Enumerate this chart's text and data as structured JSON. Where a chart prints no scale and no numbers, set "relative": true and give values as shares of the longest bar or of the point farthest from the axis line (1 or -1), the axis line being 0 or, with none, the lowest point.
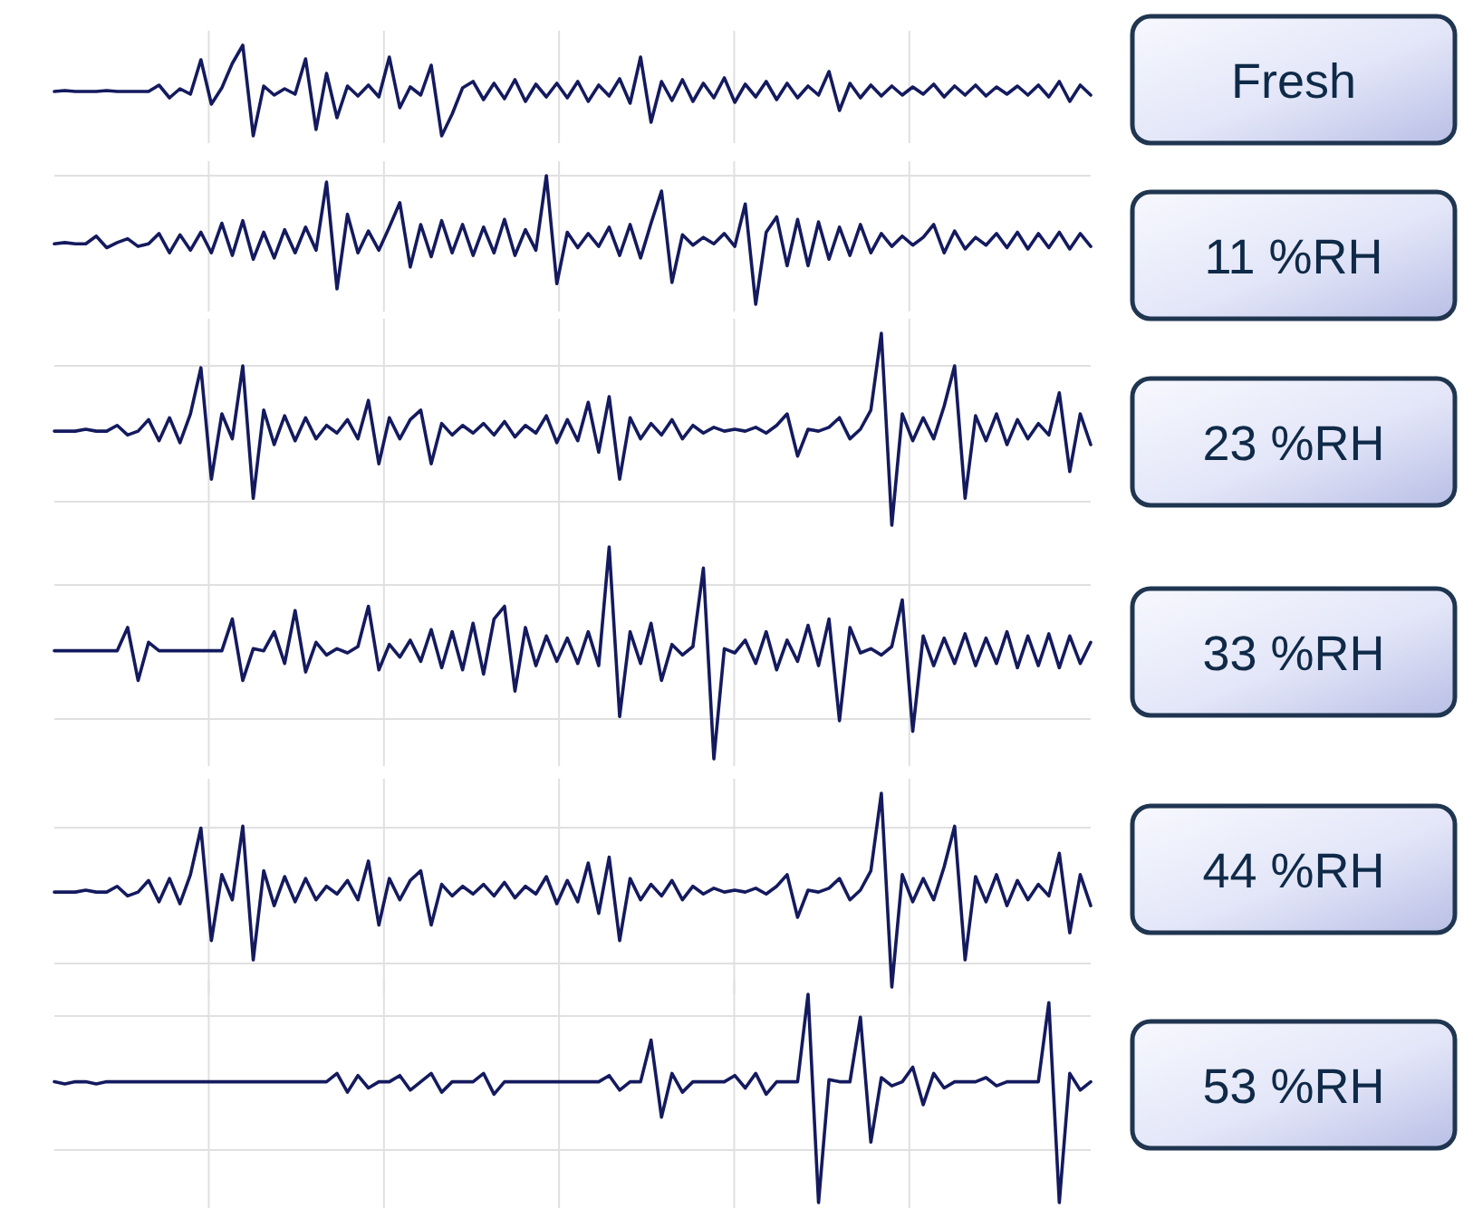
{
  "chart_data": [
    {
      "type": "line",
      "legend": "right",
      "relative": true,
      "grid": "x",
      "categories": [
        null,
        null,
        null,
        null,
        null,
        null,
        null,
        null,
        null,
        null,
        null,
        null,
        null,
        null,
        null,
        null,
        null,
        null,
        null,
        null,
        null,
        null,
        null,
        null,
        null,
        null,
        null,
        null,
        null,
        null,
        null,
        null,
        null,
        null,
        null,
        null,
        null,
        null,
        null,
        null,
        null,
        null,
        null,
        null,
        null,
        null,
        null,
        null,
        null,
        null,
        null,
        null,
        null,
        null,
        null,
        null,
        null,
        null,
        null,
        null,
        null,
        null,
        null,
        null,
        null,
        null,
        null,
        null,
        null,
        null,
        null,
        null,
        null,
        null,
        null,
        null,
        null,
        null,
        null,
        null,
        null,
        null,
        null,
        null,
        null,
        null,
        null,
        null,
        null,
        null,
        null,
        null,
        null,
        null,
        null,
        null,
        null,
        null,
        null,
        null
      ],
      "series": [
        {
          "name": "Fresh",
          "color": "#141a5e",
          "values": [
            0.49,
            0.5,
            0.49,
            0.49,
            0.49,
            0.5,
            0.49,
            0.49,
            0.49,
            0.49,
            0.56,
            0.42,
            0.52,
            0.46,
            0.84,
            0.35,
            0.53,
            0.8,
            1,
            0,
            0.55,
            0.45,
            0.52,
            0.46,
            0.85,
            0.07,
            0.69,
            0.2,
            0.55,
            0.44,
            0.56,
            0.43,
            0.87,
            0.31,
            0.54,
            0.45,
            0.78,
            0,
            0.24,
            0.53,
            0.6,
            0.4,
            0.58,
            0.41,
            0.62,
            0.38,
            0.57,
            0.43,
            0.58,
            0.42,
            0.6,
            0.38,
            0.56,
            0.44,
            0.63,
            0.36,
            0.87,
            0.15,
            0.6,
            0.39,
            0.62,
            0.38,
            0.58,
            0.42,
            0.64,
            0.37,
            0.57,
            0.43,
            0.6,
            0.4,
            0.58,
            0.42,
            0.55,
            0.45,
            0.71,
            0.28,
            0.58,
            0.42,
            0.56,
            0.44,
            0.55,
            0.45,
            0.54,
            0.46,
            0.57,
            0.43,
            0.55,
            0.45,
            0.56,
            0.44,
            0.54,
            0.46,
            0.55,
            0.45,
            0.56,
            0.43,
            0.6,
            0.38,
            0.56,
            0.45
          ]
        }
      ]
    },
    {
      "type": "line",
      "legend": "right",
      "relative": true,
      "grid": true,
      "categories": [
        null,
        null,
        null,
        null,
        null,
        null,
        null,
        null,
        null,
        null,
        null,
        null,
        null,
        null,
        null,
        null,
        null,
        null,
        null,
        null,
        null,
        null,
        null,
        null,
        null,
        null,
        null,
        null,
        null,
        null,
        null,
        null,
        null,
        null,
        null,
        null,
        null,
        null,
        null,
        null,
        null,
        null,
        null,
        null,
        null,
        null,
        null,
        null,
        null,
        null,
        null,
        null,
        null,
        null,
        null,
        null,
        null,
        null,
        null,
        null,
        null,
        null,
        null,
        null,
        null,
        null,
        null,
        null,
        null,
        null,
        null,
        null,
        null,
        null,
        null,
        null,
        null,
        null,
        null,
        null,
        null,
        null,
        null,
        null,
        null,
        null,
        null,
        null,
        null,
        null,
        null,
        null,
        null,
        null,
        null,
        null,
        null,
        null,
        null,
        null
      ],
      "series": [
        {
          "name": "11 %RH",
          "color": "#141a5e",
          "values": [
            0.47,
            0.48,
            0.47,
            0.47,
            0.53,
            0.44,
            0.48,
            0.51,
            0.45,
            0.47,
            0.55,
            0.4,
            0.54,
            0.42,
            0.56,
            0.4,
            0.63,
            0.38,
            0.65,
            0.35,
            0.56,
            0.36,
            0.58,
            0.4,
            0.6,
            0.42,
            0.95,
            0.12,
            0.7,
            0.4,
            0.57,
            0.42,
            0.6,
            0.79,
            0.29,
            0.62,
            0.37,
            0.65,
            0.4,
            0.62,
            0.38,
            0.6,
            0.4,
            0.66,
            0.38,
            0.58,
            0.42,
            1,
            0.16,
            0.56,
            0.44,
            0.55,
            0.45,
            0.6,
            0.38,
            0.62,
            0.36,
            0.63,
            0.88,
            0.17,
            0.54,
            0.46,
            0.52,
            0.47,
            0.55,
            0.45,
            0.78,
            0,
            0.56,
            0.68,
            0.3,
            0.66,
            0.3,
            0.64,
            0.35,
            0.6,
            0.38,
            0.62,
            0.4,
            0.55,
            0.45,
            0.53,
            0.46,
            0.52,
            0.62,
            0.4,
            0.57,
            0.43,
            0.52,
            0.46,
            0.55,
            0.44,
            0.56,
            0.43,
            0.55,
            0.44,
            0.56,
            0.43,
            0.55,
            0.45
          ]
        }
      ]
    },
    {
      "type": "line",
      "legend": "right",
      "relative": true,
      "grid": true,
      "categories": [
        null,
        null,
        null,
        null,
        null,
        null,
        null,
        null,
        null,
        null,
        null,
        null,
        null,
        null,
        null,
        null,
        null,
        null,
        null,
        null,
        null,
        null,
        null,
        null,
        null,
        null,
        null,
        null,
        null,
        null,
        null,
        null,
        null,
        null,
        null,
        null,
        null,
        null,
        null,
        null,
        null,
        null,
        null,
        null,
        null,
        null,
        null,
        null,
        null,
        null,
        null,
        null,
        null,
        null,
        null,
        null,
        null,
        null,
        null,
        null,
        null,
        null,
        null,
        null,
        null,
        null,
        null,
        null,
        null,
        null,
        null,
        null,
        null,
        null,
        null,
        null,
        null,
        null,
        null,
        null,
        null,
        null,
        null,
        null,
        null,
        null,
        null,
        null,
        null,
        null,
        null,
        null,
        null,
        null,
        null,
        null,
        null,
        null,
        null,
        null
      ],
      "series": [
        {
          "name": "23 %RH",
          "color": "#141a5e",
          "values": [
            0.49,
            0.49,
            0.49,
            0.5,
            0.49,
            0.49,
            0.52,
            0.47,
            0.49,
            0.55,
            0.44,
            0.56,
            0.43,
            0.58,
            0.82,
            0.24,
            0.58,
            0.45,
            0.83,
            0.14,
            0.6,
            0.42,
            0.57,
            0.44,
            0.56,
            0.45,
            0.52,
            0.48,
            0.55,
            0.45,
            0.65,
            0.32,
            0.56,
            0.45,
            0.55,
            0.6,
            0.32,
            0.53,
            0.47,
            0.52,
            0.48,
            0.53,
            0.47,
            0.54,
            0.46,
            0.52,
            0.48,
            0.57,
            0.43,
            0.55,
            0.44,
            0.64,
            0.38,
            0.67,
            0.24,
            0.56,
            0.45,
            0.53,
            0.47,
            0.55,
            0.45,
            0.52,
            0.48,
            0.51,
            0.49,
            0.5,
            0.49,
            0.51,
            0.48,
            0.52,
            0.58,
            0.36,
            0.5,
            0.49,
            0.51,
            0.56,
            0.45,
            0.5,
            0.6,
            1,
            0,
            0.58,
            0.44,
            0.56,
            0.45,
            0.62,
            0.83,
            0.14,
            0.57,
            0.44,
            0.58,
            0.42,
            0.55,
            0.45,
            0.53,
            0.47,
            0.69,
            0.28,
            0.58,
            0.42
          ]
        }
      ]
    },
    {
      "type": "line",
      "legend": "right",
      "relative": true,
      "grid": true,
      "categories": [
        null,
        null,
        null,
        null,
        null,
        null,
        null,
        null,
        null,
        null,
        null,
        null,
        null,
        null,
        null,
        null,
        null,
        null,
        null,
        null,
        null,
        null,
        null,
        null,
        null,
        null,
        null,
        null,
        null,
        null,
        null,
        null,
        null,
        null,
        null,
        null,
        null,
        null,
        null,
        null,
        null,
        null,
        null,
        null,
        null,
        null,
        null,
        null,
        null,
        null,
        null,
        null,
        null,
        null,
        null,
        null,
        null,
        null,
        null,
        null,
        null,
        null,
        null,
        null,
        null,
        null,
        null,
        null,
        null,
        null,
        null,
        null,
        null,
        null,
        null,
        null,
        null,
        null,
        null,
        null,
        null,
        null,
        null,
        null,
        null,
        null,
        null,
        null,
        null,
        null,
        null,
        null,
        null,
        null,
        null,
        null,
        null,
        null,
        null,
        null
      ],
      "series": [
        {
          "name": "33 %RH",
          "color": "#141a5e",
          "values": [
            0.51,
            0.51,
            0.51,
            0.51,
            0.51,
            0.51,
            0.51,
            0.62,
            0.37,
            0.55,
            0.51,
            0.51,
            0.51,
            0.51,
            0.51,
            0.51,
            0.51,
            0.66,
            0.37,
            0.52,
            0.51,
            0.6,
            0.45,
            0.7,
            0.41,
            0.55,
            0.49,
            0.52,
            0.5,
            0.53,
            0.72,
            0.42,
            0.54,
            0.48,
            0.56,
            0.46,
            0.61,
            0.43,
            0.6,
            0.42,
            0.64,
            0.4,
            0.66,
            0.72,
            0.32,
            0.62,
            0.44,
            0.58,
            0.46,
            0.57,
            0.45,
            0.6,
            0.44,
            1,
            0.2,
            0.6,
            0.45,
            0.64,
            0.37,
            0.54,
            0.49,
            0.53,
            0.9,
            0,
            0.52,
            0.5,
            0.56,
            0.45,
            0.6,
            0.42,
            0.56,
            0.46,
            0.63,
            0.44,
            0.66,
            0.18,
            0.62,
            0.5,
            0.52,
            0.49,
            0.53,
            0.75,
            0.13,
            0.58,
            0.44,
            0.57,
            0.45,
            0.59,
            0.44,
            0.57,
            0.45,
            0.6,
            0.43,
            0.58,
            0.44,
            0.59,
            0.43,
            0.58,
            0.45,
            0.55
          ]
        }
      ]
    },
    {
      "type": "line",
      "legend": "right",
      "relative": true,
      "grid": true,
      "categories": [
        null,
        null,
        null,
        null,
        null,
        null,
        null,
        null,
        null,
        null,
        null,
        null,
        null,
        null,
        null,
        null,
        null,
        null,
        null,
        null,
        null,
        null,
        null,
        null,
        null,
        null,
        null,
        null,
        null,
        null,
        null,
        null,
        null,
        null,
        null,
        null,
        null,
        null,
        null,
        null,
        null,
        null,
        null,
        null,
        null,
        null,
        null,
        null,
        null,
        null,
        null,
        null,
        null,
        null,
        null,
        null,
        null,
        null,
        null,
        null,
        null,
        null,
        null,
        null,
        null,
        null,
        null,
        null,
        null,
        null,
        null,
        null,
        null,
        null,
        null,
        null,
        null,
        null,
        null,
        null,
        null,
        null,
        null,
        null,
        null,
        null,
        null,
        null,
        null,
        null,
        null,
        null,
        null,
        null,
        null,
        null,
        null,
        null,
        null,
        null
      ],
      "series": [
        {
          "name": "44 %RH",
          "color": "#141a5e",
          "values": [
            0.49,
            0.49,
            0.49,
            0.5,
            0.49,
            0.49,
            0.52,
            0.47,
            0.49,
            0.55,
            0.44,
            0.56,
            0.43,
            0.58,
            0.82,
            0.24,
            0.58,
            0.45,
            0.83,
            0.14,
            0.6,
            0.42,
            0.57,
            0.44,
            0.56,
            0.45,
            0.52,
            0.48,
            0.55,
            0.45,
            0.65,
            0.32,
            0.56,
            0.45,
            0.55,
            0.6,
            0.32,
            0.53,
            0.47,
            0.52,
            0.48,
            0.53,
            0.47,
            0.54,
            0.46,
            0.52,
            0.48,
            0.57,
            0.43,
            0.55,
            0.44,
            0.64,
            0.38,
            0.67,
            0.24,
            0.56,
            0.45,
            0.53,
            0.47,
            0.55,
            0.45,
            0.52,
            0.48,
            0.51,
            0.49,
            0.5,
            0.49,
            0.51,
            0.48,
            0.52,
            0.58,
            0.36,
            0.5,
            0.49,
            0.51,
            0.56,
            0.45,
            0.5,
            0.6,
            1,
            0,
            0.58,
            0.44,
            0.56,
            0.45,
            0.62,
            0.83,
            0.14,
            0.57,
            0.44,
            0.58,
            0.42,
            0.55,
            0.45,
            0.53,
            0.47,
            0.69,
            0.28,
            0.58,
            0.42
          ]
        }
      ]
    },
    {
      "type": "line",
      "legend": "right",
      "relative": true,
      "grid": true,
      "categories": [
        null,
        null,
        null,
        null,
        null,
        null,
        null,
        null,
        null,
        null,
        null,
        null,
        null,
        null,
        null,
        null,
        null,
        null,
        null,
        null,
        null,
        null,
        null,
        null,
        null,
        null,
        null,
        null,
        null,
        null,
        null,
        null,
        null,
        null,
        null,
        null,
        null,
        null,
        null,
        null,
        null,
        null,
        null,
        null,
        null,
        null,
        null,
        null,
        null,
        null,
        null,
        null,
        null,
        null,
        null,
        null,
        null,
        null,
        null,
        null,
        null,
        null,
        null,
        null,
        null,
        null,
        null,
        null,
        null,
        null,
        null,
        null,
        null,
        null,
        null,
        null,
        null,
        null,
        null,
        null,
        null,
        null,
        null,
        null,
        null,
        null,
        null,
        null,
        null,
        null,
        null,
        null,
        null,
        null,
        null,
        null,
        null,
        null,
        null,
        null
      ],
      "series": [
        {
          "name": "53 %RH",
          "color": "#141a5e",
          "values": [
            0.58,
            0.57,
            0.58,
            0.58,
            0.57,
            0.58,
            0.58,
            0.58,
            0.58,
            0.58,
            0.58,
            0.58,
            0.58,
            0.58,
            0.58,
            0.58,
            0.58,
            0.58,
            0.58,
            0.58,
            0.58,
            0.58,
            0.58,
            0.58,
            0.58,
            0.58,
            0.58,
            0.62,
            0.53,
            0.61,
            0.55,
            0.58,
            0.58,
            0.61,
            0.54,
            0.58,
            0.62,
            0.53,
            0.58,
            0.58,
            0.58,
            0.62,
            0.52,
            0.58,
            0.58,
            0.58,
            0.58,
            0.58,
            0.58,
            0.58,
            0.58,
            0.58,
            0.58,
            0.61,
            0.54,
            0.58,
            0.58,
            0.78,
            0.41,
            0.62,
            0.53,
            0.58,
            0.58,
            0.58,
            0.58,
            0.61,
            0.55,
            0.62,
            0.52,
            0.58,
            0.58,
            0.58,
            1,
            0,
            0.59,
            0.58,
            0.58,
            0.89,
            0.29,
            0.6,
            0.56,
            0.58,
            0.65,
            0.47,
            0.62,
            0.55,
            0.58,
            0.58,
            0.58,
            0.6,
            0.56,
            0.58,
            0.58,
            0.58,
            0.58,
            0.96,
            0,
            0.62,
            0.54,
            0.58
          ]
        }
      ]
    }
  ]
}
